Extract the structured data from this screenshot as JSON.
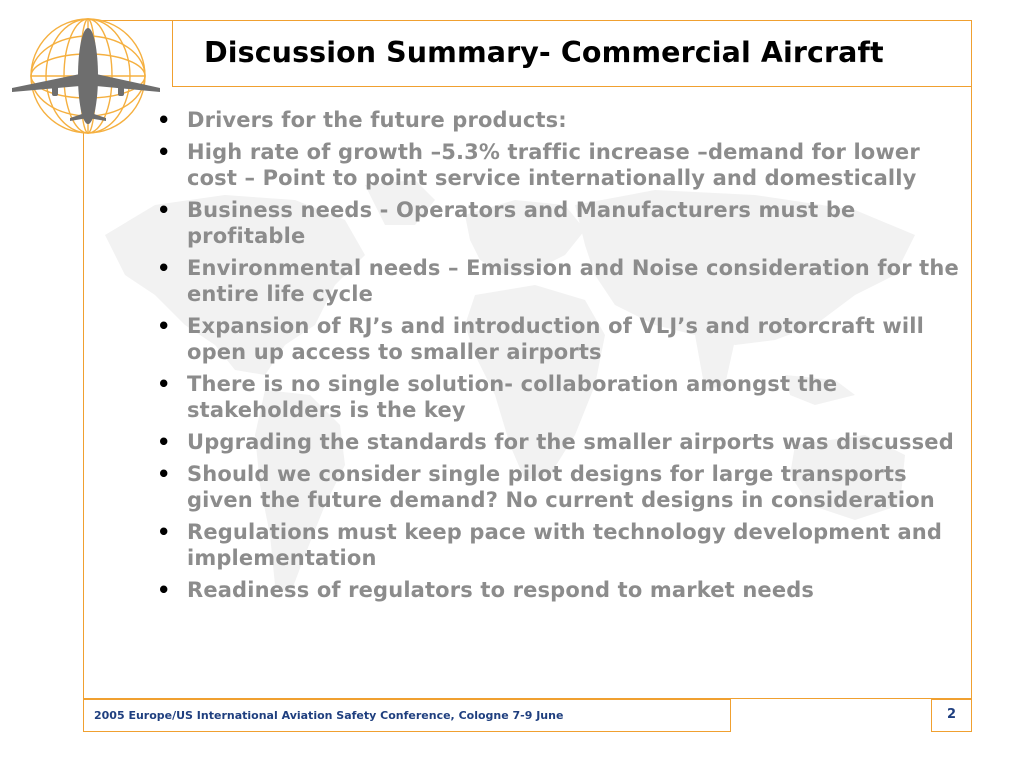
{
  "slide": {
    "title": "Discussion Summary- Commercial Aircraft",
    "bullets": [
      "Drivers for the future products:",
      "High rate of growth –5.3% traffic increase –demand for lower cost – Point to point service internationally and domestically",
      "Business needs - Operators and Manufacturers must be profitable",
      "Environmental needs – Emission and Noise consideration for the entire life cycle",
      "Expansion of RJ’s and introduction of VLJ’s and rotorcraft will open up access to smaller airports",
      "There is no single solution- collaboration amongst the stakeholders is the key",
      "Upgrading the standards for the smaller airports was discussed",
      "Should we consider single pilot designs for large transports given the future demand?  No current designs in consideration",
      "Regulations must keep pace with technology development and implementation",
      "Readiness of regulators to respond to market needs"
    ],
    "bullet_glyph": "•"
  },
  "footer": {
    "conference": "2005 Europe/US International Aviation Safety Conference, Cologne 7-9 June",
    "page_number": "2"
  },
  "colors": {
    "frame": "#f0a030",
    "bullet_text": "#8c8c8c",
    "footer_text": "#1f3f7f",
    "logo_globe": "#f5b040",
    "logo_plane": "#6e6e6e"
  },
  "icons": {
    "logo": "globe-airplane-logo",
    "background": "world-map-watermark"
  }
}
